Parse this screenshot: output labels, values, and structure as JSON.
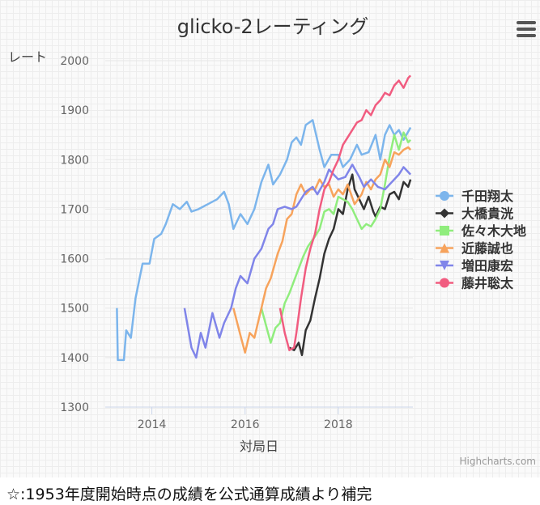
{
  "chart_data": {
    "type": "line",
    "title": "glicko-2レーティング",
    "xlabel": "対局日",
    "ylabel": "レート",
    "ylim": [
      1300,
      2000
    ],
    "yticks": [
      1300,
      1400,
      1500,
      1600,
      1700,
      1800,
      1900,
      2000
    ],
    "xlim": [
      2013.0,
      2019.6
    ],
    "xticks": [
      2014,
      2016,
      2018
    ],
    "grid": true,
    "legend_position": "right",
    "credits": "Highcharts.com",
    "series": [
      {
        "name": "千田翔太",
        "color": "#7cb5ec",
        "marker": "circle",
        "points": [
          [
            2013.25,
            1500
          ],
          [
            2013.27,
            1395
          ],
          [
            2013.4,
            1395
          ],
          [
            2013.45,
            1455
          ],
          [
            2013.55,
            1440
          ],
          [
            2013.65,
            1520
          ],
          [
            2013.8,
            1590
          ],
          [
            2013.95,
            1590
          ],
          [
            2014.05,
            1640
          ],
          [
            2014.2,
            1650
          ],
          [
            2014.3,
            1670
          ],
          [
            2014.45,
            1710
          ],
          [
            2014.6,
            1700
          ],
          [
            2014.75,
            1715
          ],
          [
            2014.85,
            1695
          ],
          [
            2015.0,
            1700
          ],
          [
            2015.2,
            1710
          ],
          [
            2015.4,
            1720
          ],
          [
            2015.55,
            1735
          ],
          [
            2015.65,
            1710
          ],
          [
            2015.75,
            1660
          ],
          [
            2015.9,
            1690
          ],
          [
            2016.05,
            1670
          ],
          [
            2016.2,
            1700
          ],
          [
            2016.35,
            1755
          ],
          [
            2016.5,
            1790
          ],
          [
            2016.6,
            1750
          ],
          [
            2016.75,
            1770
          ],
          [
            2016.9,
            1800
          ],
          [
            2017.0,
            1835
          ],
          [
            2017.1,
            1845
          ],
          [
            2017.2,
            1830
          ],
          [
            2017.3,
            1870
          ],
          [
            2017.45,
            1880
          ],
          [
            2017.6,
            1820
          ],
          [
            2017.7,
            1785
          ],
          [
            2017.85,
            1810
          ],
          [
            2018.0,
            1810
          ],
          [
            2018.1,
            1785
          ],
          [
            2018.25,
            1800
          ],
          [
            2018.4,
            1830
          ],
          [
            2018.5,
            1810
          ],
          [
            2018.65,
            1815
          ],
          [
            2018.8,
            1850
          ],
          [
            2018.9,
            1800
          ],
          [
            2019.0,
            1850
          ],
          [
            2019.1,
            1870
          ],
          [
            2019.2,
            1850
          ],
          [
            2019.3,
            1860
          ],
          [
            2019.4,
            1840
          ],
          [
            2019.55,
            1865
          ]
        ]
      },
      {
        "name": "大橋貴洸",
        "color": "#333333",
        "marker": "diamond",
        "points": [
          [
            2016.95,
            1420
          ],
          [
            2017.05,
            1415
          ],
          [
            2017.15,
            1430
          ],
          [
            2017.22,
            1405
          ],
          [
            2017.3,
            1455
          ],
          [
            2017.4,
            1475
          ],
          [
            2017.5,
            1520
          ],
          [
            2017.6,
            1560
          ],
          [
            2017.7,
            1610
          ],
          [
            2017.8,
            1640
          ],
          [
            2017.9,
            1660
          ],
          [
            2018.0,
            1700
          ],
          [
            2018.1,
            1690
          ],
          [
            2018.2,
            1740
          ],
          [
            2018.3,
            1770
          ],
          [
            2018.35,
            1740
          ],
          [
            2018.45,
            1720
          ],
          [
            2018.55,
            1700
          ],
          [
            2018.65,
            1725
          ],
          [
            2018.75,
            1695
          ],
          [
            2018.8,
            1685
          ],
          [
            2018.9,
            1705
          ],
          [
            2019.0,
            1700
          ],
          [
            2019.1,
            1730
          ],
          [
            2019.2,
            1735
          ],
          [
            2019.3,
            1720
          ],
          [
            2019.4,
            1755
          ],
          [
            2019.5,
            1745
          ],
          [
            2019.55,
            1760
          ]
        ]
      },
      {
        "name": "佐々木大地",
        "color": "#90ed7d",
        "marker": "square",
        "points": [
          [
            2016.35,
            1500
          ],
          [
            2016.45,
            1465
          ],
          [
            2016.55,
            1430
          ],
          [
            2016.65,
            1460
          ],
          [
            2016.75,
            1470
          ],
          [
            2016.85,
            1510
          ],
          [
            2016.95,
            1530
          ],
          [
            2017.05,
            1555
          ],
          [
            2017.15,
            1580
          ],
          [
            2017.25,
            1605
          ],
          [
            2017.35,
            1625
          ],
          [
            2017.5,
            1645
          ],
          [
            2017.6,
            1660
          ],
          [
            2017.7,
            1695
          ],
          [
            2017.8,
            1700
          ],
          [
            2017.9,
            1690
          ],
          [
            2018.0,
            1725
          ],
          [
            2018.1,
            1720
          ],
          [
            2018.2,
            1715
          ],
          [
            2018.3,
            1700
          ],
          [
            2018.4,
            1680
          ],
          [
            2018.5,
            1660
          ],
          [
            2018.6,
            1670
          ],
          [
            2018.7,
            1665
          ],
          [
            2018.8,
            1680
          ],
          [
            2018.9,
            1700
          ],
          [
            2019.0,
            1750
          ],
          [
            2019.1,
            1805
          ],
          [
            2019.2,
            1850
          ],
          [
            2019.3,
            1820
          ],
          [
            2019.4,
            1855
          ],
          [
            2019.5,
            1835
          ],
          [
            2019.55,
            1840
          ]
        ]
      },
      {
        "name": "近藤誠也",
        "color": "#f7a35c",
        "marker": "triangle",
        "points": [
          [
            2015.75,
            1500
          ],
          [
            2015.9,
            1445
          ],
          [
            2016.0,
            1410
          ],
          [
            2016.1,
            1450
          ],
          [
            2016.2,
            1440
          ],
          [
            2016.35,
            1500
          ],
          [
            2016.45,
            1540
          ],
          [
            2016.55,
            1560
          ],
          [
            2016.7,
            1610
          ],
          [
            2016.8,
            1635
          ],
          [
            2016.9,
            1680
          ],
          [
            2017.0,
            1690
          ],
          [
            2017.1,
            1730
          ],
          [
            2017.2,
            1750
          ],
          [
            2017.3,
            1730
          ],
          [
            2017.4,
            1740
          ],
          [
            2017.5,
            1740
          ],
          [
            2017.6,
            1760
          ],
          [
            2017.7,
            1745
          ],
          [
            2017.8,
            1750
          ],
          [
            2017.9,
            1725
          ],
          [
            2018.0,
            1740
          ],
          [
            2018.1,
            1730
          ],
          [
            2018.2,
            1750
          ],
          [
            2018.35,
            1710
          ],
          [
            2018.5,
            1730
          ],
          [
            2018.6,
            1755
          ],
          [
            2018.7,
            1740
          ],
          [
            2018.8,
            1760
          ],
          [
            2018.9,
            1770
          ],
          [
            2019.0,
            1800
          ],
          [
            2019.1,
            1785
          ],
          [
            2019.2,
            1815
          ],
          [
            2019.3,
            1810
          ],
          [
            2019.4,
            1820
          ],
          [
            2019.5,
            1825
          ],
          [
            2019.55,
            1820
          ]
        ]
      },
      {
        "name": "増田康宏",
        "color": "#8085e9",
        "marker": "triangle-down",
        "points": [
          [
            2014.7,
            1500
          ],
          [
            2014.85,
            1420
          ],
          [
            2014.95,
            1400
          ],
          [
            2015.05,
            1450
          ],
          [
            2015.15,
            1420
          ],
          [
            2015.3,
            1490
          ],
          [
            2015.45,
            1440
          ],
          [
            2015.55,
            1470
          ],
          [
            2015.7,
            1500
          ],
          [
            2015.8,
            1540
          ],
          [
            2015.9,
            1565
          ],
          [
            2016.05,
            1550
          ],
          [
            2016.2,
            1600
          ],
          [
            2016.35,
            1620
          ],
          [
            2016.5,
            1660
          ],
          [
            2016.6,
            1670
          ],
          [
            2016.7,
            1700
          ],
          [
            2016.85,
            1705
          ],
          [
            2017.0,
            1700
          ],
          [
            2017.1,
            1705
          ],
          [
            2017.2,
            1720
          ],
          [
            2017.3,
            1735
          ],
          [
            2017.45,
            1745
          ],
          [
            2017.55,
            1730
          ],
          [
            2017.7,
            1755
          ],
          [
            2017.8,
            1780
          ],
          [
            2017.9,
            1770
          ],
          [
            2018.0,
            1760
          ],
          [
            2018.15,
            1765
          ],
          [
            2018.3,
            1790
          ],
          [
            2018.45,
            1765
          ],
          [
            2018.55,
            1745
          ],
          [
            2018.7,
            1760
          ],
          [
            2018.85,
            1745
          ],
          [
            2019.0,
            1740
          ],
          [
            2019.15,
            1755
          ],
          [
            2019.3,
            1770
          ],
          [
            2019.4,
            1785
          ],
          [
            2019.55,
            1770
          ]
        ]
      },
      {
        "name": "藤井聡太",
        "color": "#f15c80",
        "marker": "circle",
        "points": [
          [
            2016.75,
            1500
          ],
          [
            2016.85,
            1450
          ],
          [
            2016.95,
            1415
          ],
          [
            2017.05,
            1420
          ],
          [
            2017.1,
            1450
          ],
          [
            2017.2,
            1520
          ],
          [
            2017.3,
            1580
          ],
          [
            2017.4,
            1620
          ],
          [
            2017.5,
            1650
          ],
          [
            2017.6,
            1700
          ],
          [
            2017.7,
            1740
          ],
          [
            2017.8,
            1755
          ],
          [
            2017.9,
            1780
          ],
          [
            2018.0,
            1800
          ],
          [
            2018.1,
            1830
          ],
          [
            2018.2,
            1845
          ],
          [
            2018.3,
            1860
          ],
          [
            2018.4,
            1875
          ],
          [
            2018.5,
            1880
          ],
          [
            2018.6,
            1900
          ],
          [
            2018.7,
            1890
          ],
          [
            2018.8,
            1910
          ],
          [
            2018.9,
            1920
          ],
          [
            2019.0,
            1935
          ],
          [
            2019.1,
            1930
          ],
          [
            2019.2,
            1950
          ],
          [
            2019.3,
            1960
          ],
          [
            2019.4,
            1945
          ],
          [
            2019.5,
            1965
          ],
          [
            2019.55,
            1970
          ]
        ]
      }
    ]
  },
  "footnote": "☆:1953年度開始時点の成績を公式通算成績より補完"
}
